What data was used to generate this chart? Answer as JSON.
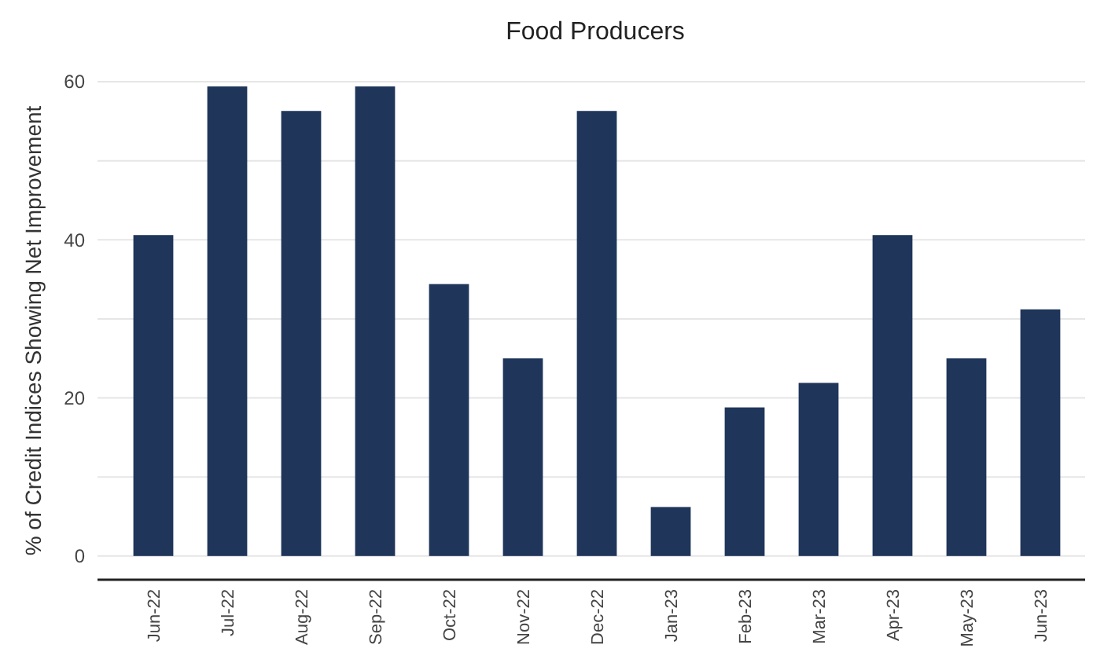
{
  "chart_data": {
    "type": "bar",
    "title": "Food Producers",
    "ylabel": "% of Credit Indices Showing Net Improvement",
    "categories": [
      "Jun-22",
      "Jul-22",
      "Aug-22",
      "Sep-22",
      "Oct-22",
      "Nov-22",
      "Dec-22",
      "Jan-23",
      "Feb-23",
      "Mar-23",
      "Apr-23",
      "May-23",
      "Jun-23"
    ],
    "values": [
      40.6,
      59.4,
      56.3,
      59.4,
      34.4,
      25,
      56.3,
      6.2,
      18.8,
      21.9,
      40.6,
      25,
      31.2
    ],
    "color": "#1f355a",
    "ylim": [
      -3,
      60
    ],
    "yticks": [
      0,
      {
        "value": 10,
        "label": null
      },
      20,
      {
        "value": 30,
        "label": null
      },
      40,
      {
        "value": 50,
        "label": null
      },
      60
    ],
    "grid": "y"
  }
}
